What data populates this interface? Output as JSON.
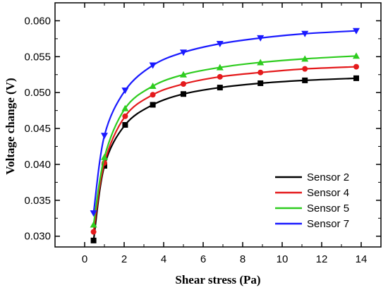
{
  "chart_data": {
    "type": "line",
    "xlabel": "Shear stress (Pa)",
    "ylabel": "Voltage change (V)",
    "xlim": [
      -1.5,
      15
    ],
    "ylim": [
      0.0285,
      0.0625
    ],
    "xticks": [
      0,
      2,
      4,
      6,
      8,
      10,
      12,
      14
    ],
    "yticks": [
      0.03,
      0.035,
      0.04,
      0.045,
      0.05,
      0.055,
      0.06
    ],
    "ytick_labels": [
      "0.030",
      "0.035",
      "0.040",
      "0.045",
      "0.050",
      "0.055",
      "0.060"
    ],
    "grid": false,
    "legend_position": "bottom-right",
    "x": [
      0.45,
      1.0,
      2.05,
      3.45,
      5.0,
      6.85,
      8.9,
      11.15,
      13.75
    ],
    "series": [
      {
        "name": "Sensor 2",
        "color": "#000000",
        "marker": "square",
        "values": [
          0.0294,
          0.0398,
          0.0455,
          0.0483,
          0.0498,
          0.0507,
          0.0513,
          0.0517,
          0.052
        ]
      },
      {
        "name": "Sensor 4",
        "color": "#e41a1c",
        "marker": "circle",
        "values": [
          0.0306,
          0.0402,
          0.0467,
          0.0497,
          0.0512,
          0.0522,
          0.0528,
          0.0533,
          0.0536
        ]
      },
      {
        "name": "Sensor 5",
        "color": "#2ecc1f",
        "marker": "triangle-up",
        "values": [
          0.0316,
          0.041,
          0.0478,
          0.0509,
          0.0525,
          0.0535,
          0.0542,
          0.0547,
          0.0551
        ]
      },
      {
        "name": "Sensor 7",
        "color": "#1a1aff",
        "marker": "triangle-down",
        "values": [
          0.0332,
          0.044,
          0.0503,
          0.0538,
          0.0556,
          0.0568,
          0.0576,
          0.0582,
          0.0586
        ]
      }
    ]
  }
}
